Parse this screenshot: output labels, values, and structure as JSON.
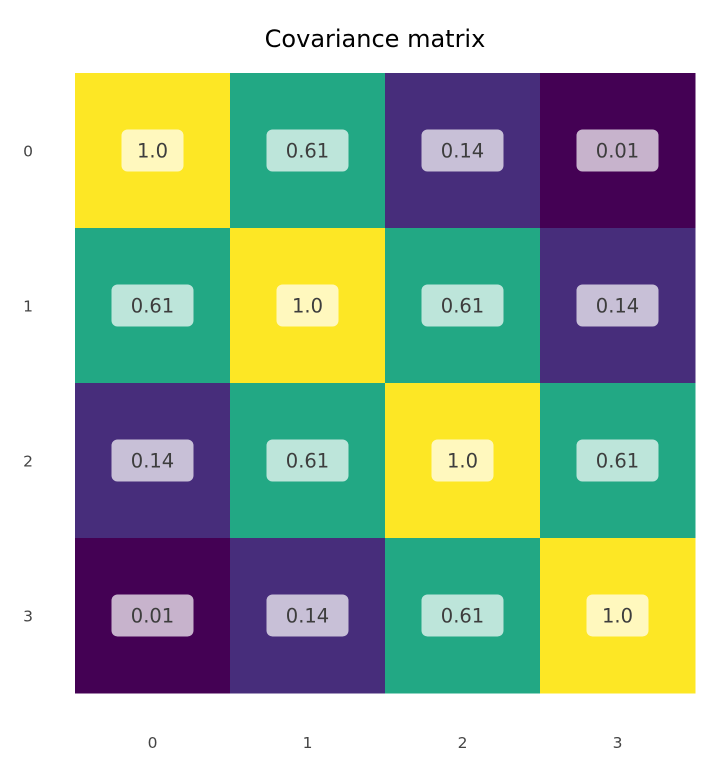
{
  "chart_data": {
    "type": "heatmap",
    "title": "Covariance matrix",
    "xlabel": "",
    "ylabel": "",
    "x_categories": [
      "0",
      "1",
      "2",
      "3"
    ],
    "y_categories": [
      "0",
      "1",
      "2",
      "3"
    ],
    "values": [
      [
        1.0,
        0.61,
        0.14,
        0.01
      ],
      [
        0.61,
        1.0,
        0.61,
        0.14
      ],
      [
        0.14,
        0.61,
        1.0,
        0.61
      ],
      [
        0.01,
        0.14,
        0.61,
        1.0
      ]
    ],
    "labels": [
      [
        "1.0",
        "0.61",
        "0.14",
        "0.01"
      ],
      [
        "0.61",
        "1.0",
        "0.61",
        "0.14"
      ],
      [
        "0.14",
        "0.61",
        "1.0",
        "0.61"
      ],
      [
        "0.01",
        "0.14",
        "0.61",
        "1.0"
      ]
    ],
    "colormap": "viridis",
    "color_map": {
      "1.0": "#fde725",
      "0.61": "#22a884",
      "0.14": "#472d7b",
      "0.01": "#440154"
    },
    "label_box_color": "#ffffff",
    "grid": false,
    "legend": false
  }
}
